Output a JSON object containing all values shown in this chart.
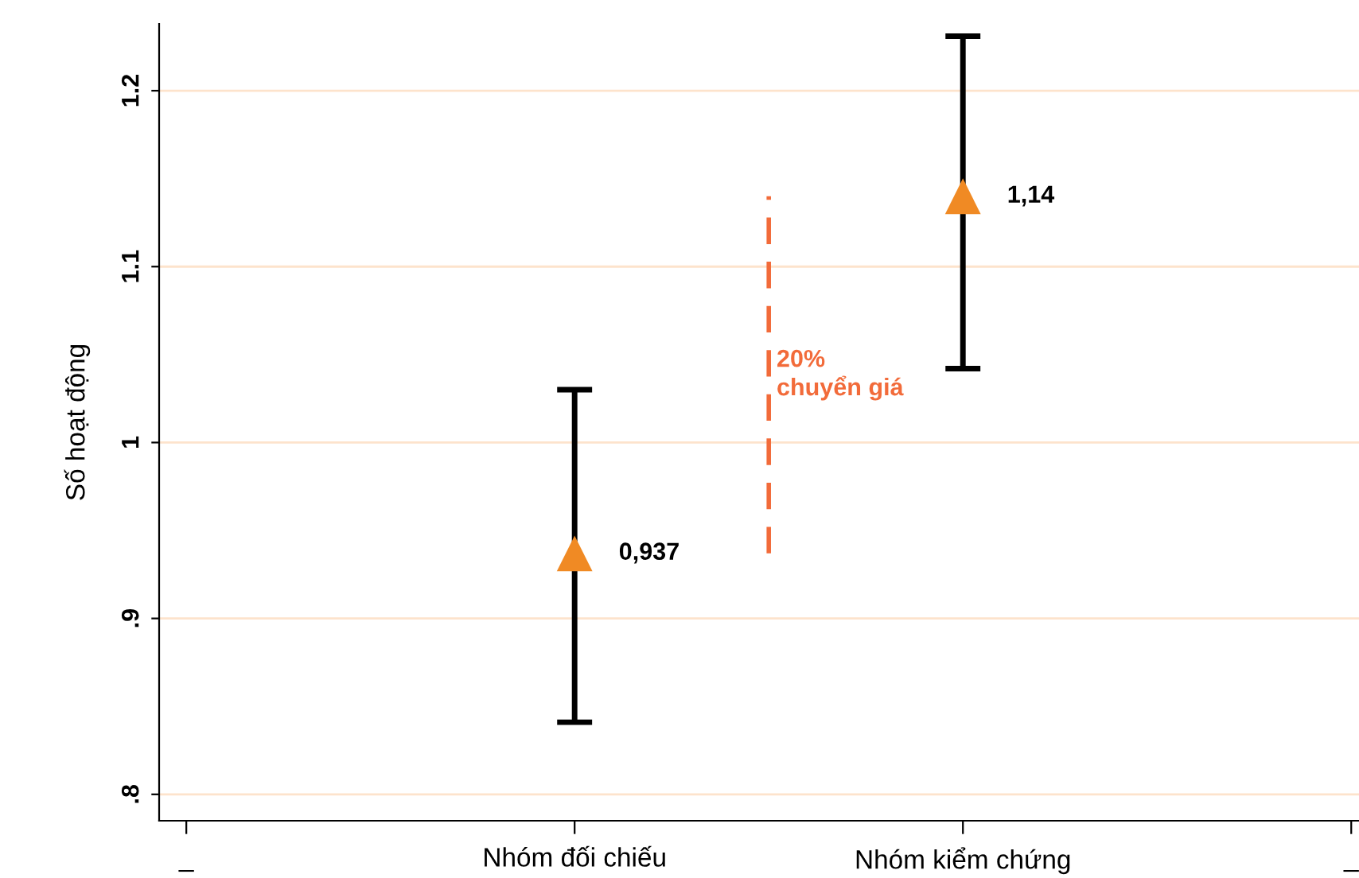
{
  "chart_data": {
    "type": "scatter",
    "ylabel": "Số hoạt động",
    "categories": [
      "_",
      "Nhóm đối chiếu",
      "Nhóm kiểm chứng",
      "_"
    ],
    "series": [
      {
        "color": "#f08a24",
        "values": [
          null,
          0.937,
          1.14,
          null
        ],
        "errors": [
          null,
          [
            0.841,
            1.03
          ],
          [
            1.042,
            1.231
          ],
          null
        ],
        "value_labels": [
          null,
          "0,937",
          "1,14",
          null
        ]
      }
    ],
    "ylim": [
      0.785,
      1.238
    ],
    "yticks": [
      {
        "value": 0.8,
        "label": ".8"
      },
      {
        "value": 0.9,
        "label": ".9"
      },
      1,
      1.1,
      1.2
    ],
    "grid": "y",
    "marker": "triangle",
    "legend": false,
    "annotations": [
      "20%\nchuyển giá"
    ]
  }
}
